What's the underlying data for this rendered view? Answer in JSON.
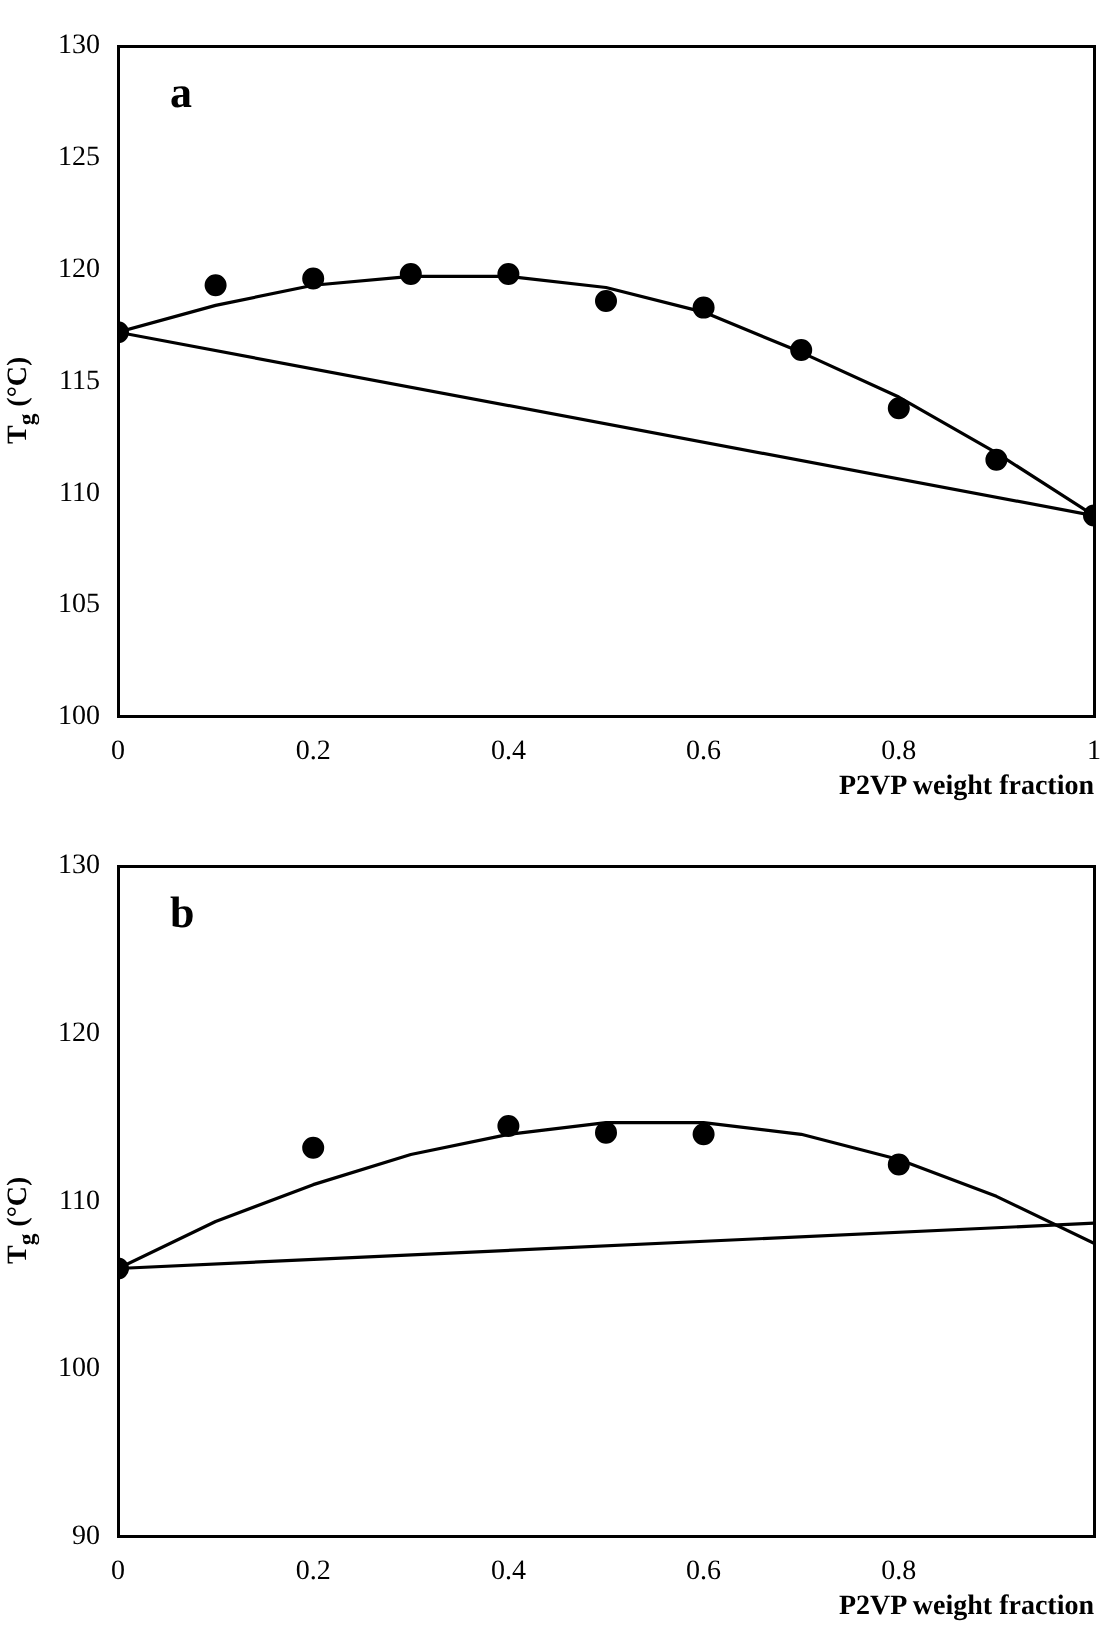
{
  "chart_data": [
    {
      "type": "scatter",
      "xlabel": "P2VP weight fraction",
      "ylabel": "T$_{g}$ (°C)",
      "annotations": [
        "a"
      ],
      "xlim": [
        0,
        1
      ],
      "ylim": [
        100,
        130
      ],
      "xticks": [
        0,
        0.2,
        0.4,
        0.6,
        0.8,
        1
      ],
      "yticks": [
        100,
        105,
        110,
        115,
        120,
        125,
        130
      ],
      "grid": false,
      "legend": false,
      "series": [
        {
          "color": "#000000",
          "marker": "circle",
          "x": [
            0,
            0.1,
            0.2,
            0.3,
            0.4,
            0.5,
            0.6,
            0.7,
            0.8,
            0.9,
            1
          ],
          "values": [
            117.2,
            119.3,
            119.6,
            119.8,
            119.8,
            118.6,
            118.3,
            116.4,
            113.8,
            111.5,
            109
          ]
        },
        {
          "type": "line",
          "color": "#000000",
          "marker": "none",
          "line_style": "solid",
          "x": [
            0,
            0.1,
            0.2,
            0.3,
            0.4,
            0.5,
            0.6,
            0.7,
            0.8,
            0.9,
            1
          ],
          "values": [
            117.2,
            118.4,
            119.3,
            119.7,
            119.7,
            119.2,
            118.1,
            116.3,
            114.3,
            111.8,
            109
          ]
        },
        {
          "type": "line",
          "color": "#000000",
          "marker": "none",
          "line_style": "solid",
          "x": [
            0,
            1
          ],
          "values": [
            117.2,
            109
          ]
        }
      ]
    },
    {
      "type": "scatter",
      "xlabel": "P2VP weight fraction",
      "ylabel": "T$_{g}$ (°C)",
      "annotations": [
        "b"
      ],
      "xlim": [
        0,
        1
      ],
      "ylim": [
        90,
        130
      ],
      "xticks": [
        0,
        0.2,
        0.4,
        0.6,
        0.8,
        {
          "value": 1,
          "label": null
        }
      ],
      "yticks": [
        90,
        100,
        110,
        120,
        130
      ],
      "grid": false,
      "legend": false,
      "series": [
        {
          "color": "#000000",
          "marker": "circle",
          "x": [
            0,
            0.2,
            0.4,
            0.5,
            0.6,
            0.8
          ],
          "values": [
            106,
            113.2,
            114.5,
            114.1,
            114,
            112.2
          ]
        },
        {
          "type": "line",
          "color": "#000000",
          "marker": "none",
          "line_style": "solid",
          "x": [
            0,
            0.1,
            0.2,
            0.3,
            0.4,
            0.5,
            0.6,
            0.7,
            0.8,
            0.9,
            1
          ],
          "values": [
            106,
            108.8,
            111,
            112.8,
            114,
            114.7,
            114.7,
            114,
            112.5,
            110.3,
            107.5
          ]
        },
        {
          "type": "line",
          "color": "#000000",
          "marker": "none",
          "line_style": "solid",
          "x": [
            0,
            1
          ],
          "values": [
            106,
            108.7
          ]
        }
      ]
    }
  ]
}
